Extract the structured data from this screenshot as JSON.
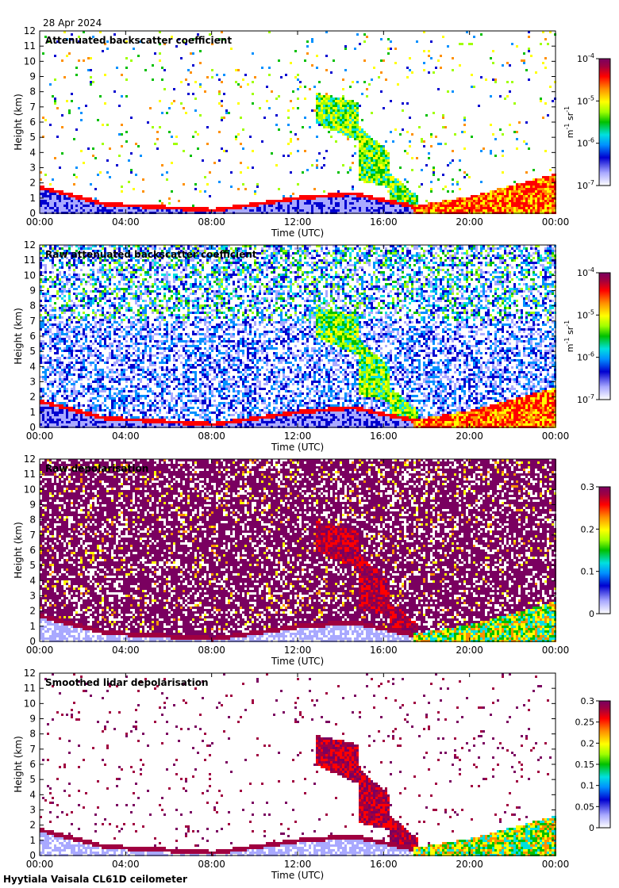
{
  "date": "28 Apr 2024",
  "instrument": "Hyytiala Vaisala CL61D ceilometer",
  "colormap": [
    "#ffffff",
    "#a9a9ff",
    "#0000d0",
    "#0090ff",
    "#00e0e0",
    "#00c000",
    "#a0ff00",
    "#ffff00",
    "#ff9000",
    "#ff0000",
    "#a00040",
    "#7a0060"
  ],
  "chart_data": [
    {
      "type": "heatmap",
      "title": "Attenuated backscatter coefficient",
      "xlabel": "Time (UTC)",
      "ylabel": "Height (km)",
      "xlim": [
        0,
        24
      ],
      "ylim": [
        0,
        12
      ],
      "x_ticks": [
        "00:00",
        "04:00",
        "08:00",
        "12:00",
        "16:00",
        "20:00",
        "00:00"
      ],
      "y_ticks": [
        0,
        1,
        2,
        3,
        4,
        5,
        6,
        7,
        8,
        9,
        10,
        11,
        12
      ],
      "colorbar": {
        "scale": "log",
        "range": [
          1e-07,
          0.0001
        ],
        "ticks": [
          "10^-4",
          "10^-5",
          "10^-6",
          "10^-7"
        ],
        "label": "m^-1 sr^-1"
      },
      "features": {
        "boundary_layer_top_km": [
          [
            0,
            1.9
          ],
          [
            3,
            0.8
          ],
          [
            8,
            0.4
          ],
          [
            12,
            1.2
          ],
          [
            14.5,
            1.5
          ],
          [
            17.5,
            0.6
          ],
          [
            20,
            1.2
          ],
          [
            24,
            2.7
          ]
        ],
        "cloud_layer_km": [
          [
            13,
            6.8
          ],
          [
            15,
            4.5
          ],
          [
            16,
            2.5
          ],
          [
            17,
            1.0
          ]
        ]
      }
    },
    {
      "type": "heatmap",
      "title": "Raw attenuated backscatter coefficient",
      "xlabel": "Time (UTC)",
      "ylabel": "Height (km)",
      "xlim": [
        0,
        24
      ],
      "ylim": [
        0,
        12
      ],
      "x_ticks": [
        "00:00",
        "04:00",
        "08:00",
        "12:00",
        "16:00",
        "20:00",
        "00:00"
      ],
      "y_ticks": [
        0,
        1,
        2,
        3,
        4,
        5,
        6,
        7,
        8,
        9,
        10,
        11,
        12
      ],
      "colorbar": {
        "scale": "log",
        "range": [
          1e-07,
          0.0001
        ],
        "ticks": [
          "10^-4",
          "10^-5",
          "10^-6",
          "10^-7"
        ],
        "label": "m^-1 sr^-1"
      }
    },
    {
      "type": "heatmap",
      "title": "Raw depolarisation",
      "xlabel": "Time (UTC)",
      "ylabel": "Height (km)",
      "xlim": [
        0,
        24
      ],
      "ylim": [
        0,
        12
      ],
      "x_ticks": [
        "00:00",
        "04:00",
        "08:00",
        "12:00",
        "16:00",
        "20:00",
        "00:00"
      ],
      "y_ticks": [
        0,
        1,
        2,
        3,
        4,
        5,
        6,
        7,
        8,
        9,
        10,
        11,
        12
      ],
      "colorbar": {
        "scale": "linear",
        "range": [
          0,
          0.3
        ],
        "ticks": [
          "0.3",
          "0.2",
          "0.1",
          "0"
        ],
        "label": ""
      }
    },
    {
      "type": "heatmap",
      "title": "Smoothed lidar depolarisation",
      "xlabel": "Time (UTC)",
      "ylabel": "Height (km)",
      "xlim": [
        0,
        24
      ],
      "ylim": [
        0,
        12
      ],
      "x_ticks": [
        "00:00",
        "04:00",
        "08:00",
        "12:00",
        "16:00",
        "20:00",
        "00:00"
      ],
      "y_ticks": [
        0,
        1,
        2,
        3,
        4,
        5,
        6,
        7,
        8,
        9,
        10,
        11,
        12
      ],
      "colorbar": {
        "scale": "linear",
        "range": [
          0,
          0.3
        ],
        "ticks": [
          "0.3",
          "0.25",
          "0.2",
          "0.15",
          "0.1",
          "0.05",
          "0"
        ],
        "label": ""
      }
    }
  ]
}
